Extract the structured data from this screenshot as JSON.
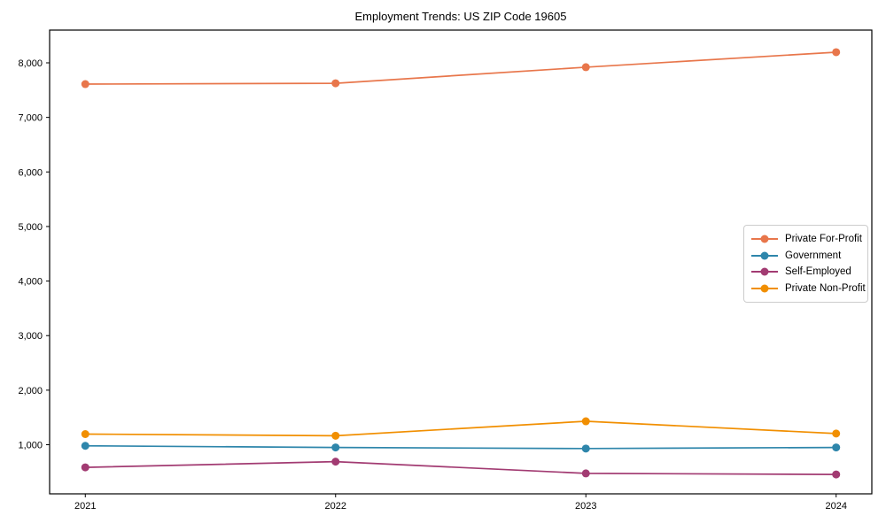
{
  "chart_data": {
    "type": "line",
    "title": "Employment Trends: US ZIP Code 19605",
    "xlabel": "",
    "ylabel": "",
    "x_tick_labels": [
      "2021",
      "2022",
      "2023",
      "2024"
    ],
    "series": [
      {
        "name": "Private For-Profit",
        "color": "#E8764B",
        "values": [
          7610,
          7625,
          7920,
          8195
        ]
      },
      {
        "name": "Government",
        "color": "#2E86AB",
        "values": [
          980,
          950,
          930,
          950
        ]
      },
      {
        "name": "Self-Employed",
        "color": "#A23B72",
        "values": [
          585,
          690,
          475,
          455
        ]
      },
      {
        "name": "Private Non-Profit",
        "color": "#F18F01",
        "values": [
          1195,
          1165,
          1430,
          1205
        ]
      }
    ],
    "yticks": [
      {
        "value": 1000,
        "label": "1,000"
      },
      {
        "value": 2000,
        "label": "2,000"
      },
      {
        "value": 3000,
        "label": "3,000"
      },
      {
        "value": 4000,
        "label": "4,000"
      },
      {
        "value": 5000,
        "label": "5,000"
      },
      {
        "value": 6000,
        "label": "6,000"
      },
      {
        "value": 7000,
        "label": "7,000"
      },
      {
        "value": 8000,
        "label": "8,000"
      }
    ],
    "ylim": [
      100,
      8600
    ],
    "grid": false,
    "marker": "circle",
    "legend_position": "center-right",
    "spine_color": "#000000"
  }
}
